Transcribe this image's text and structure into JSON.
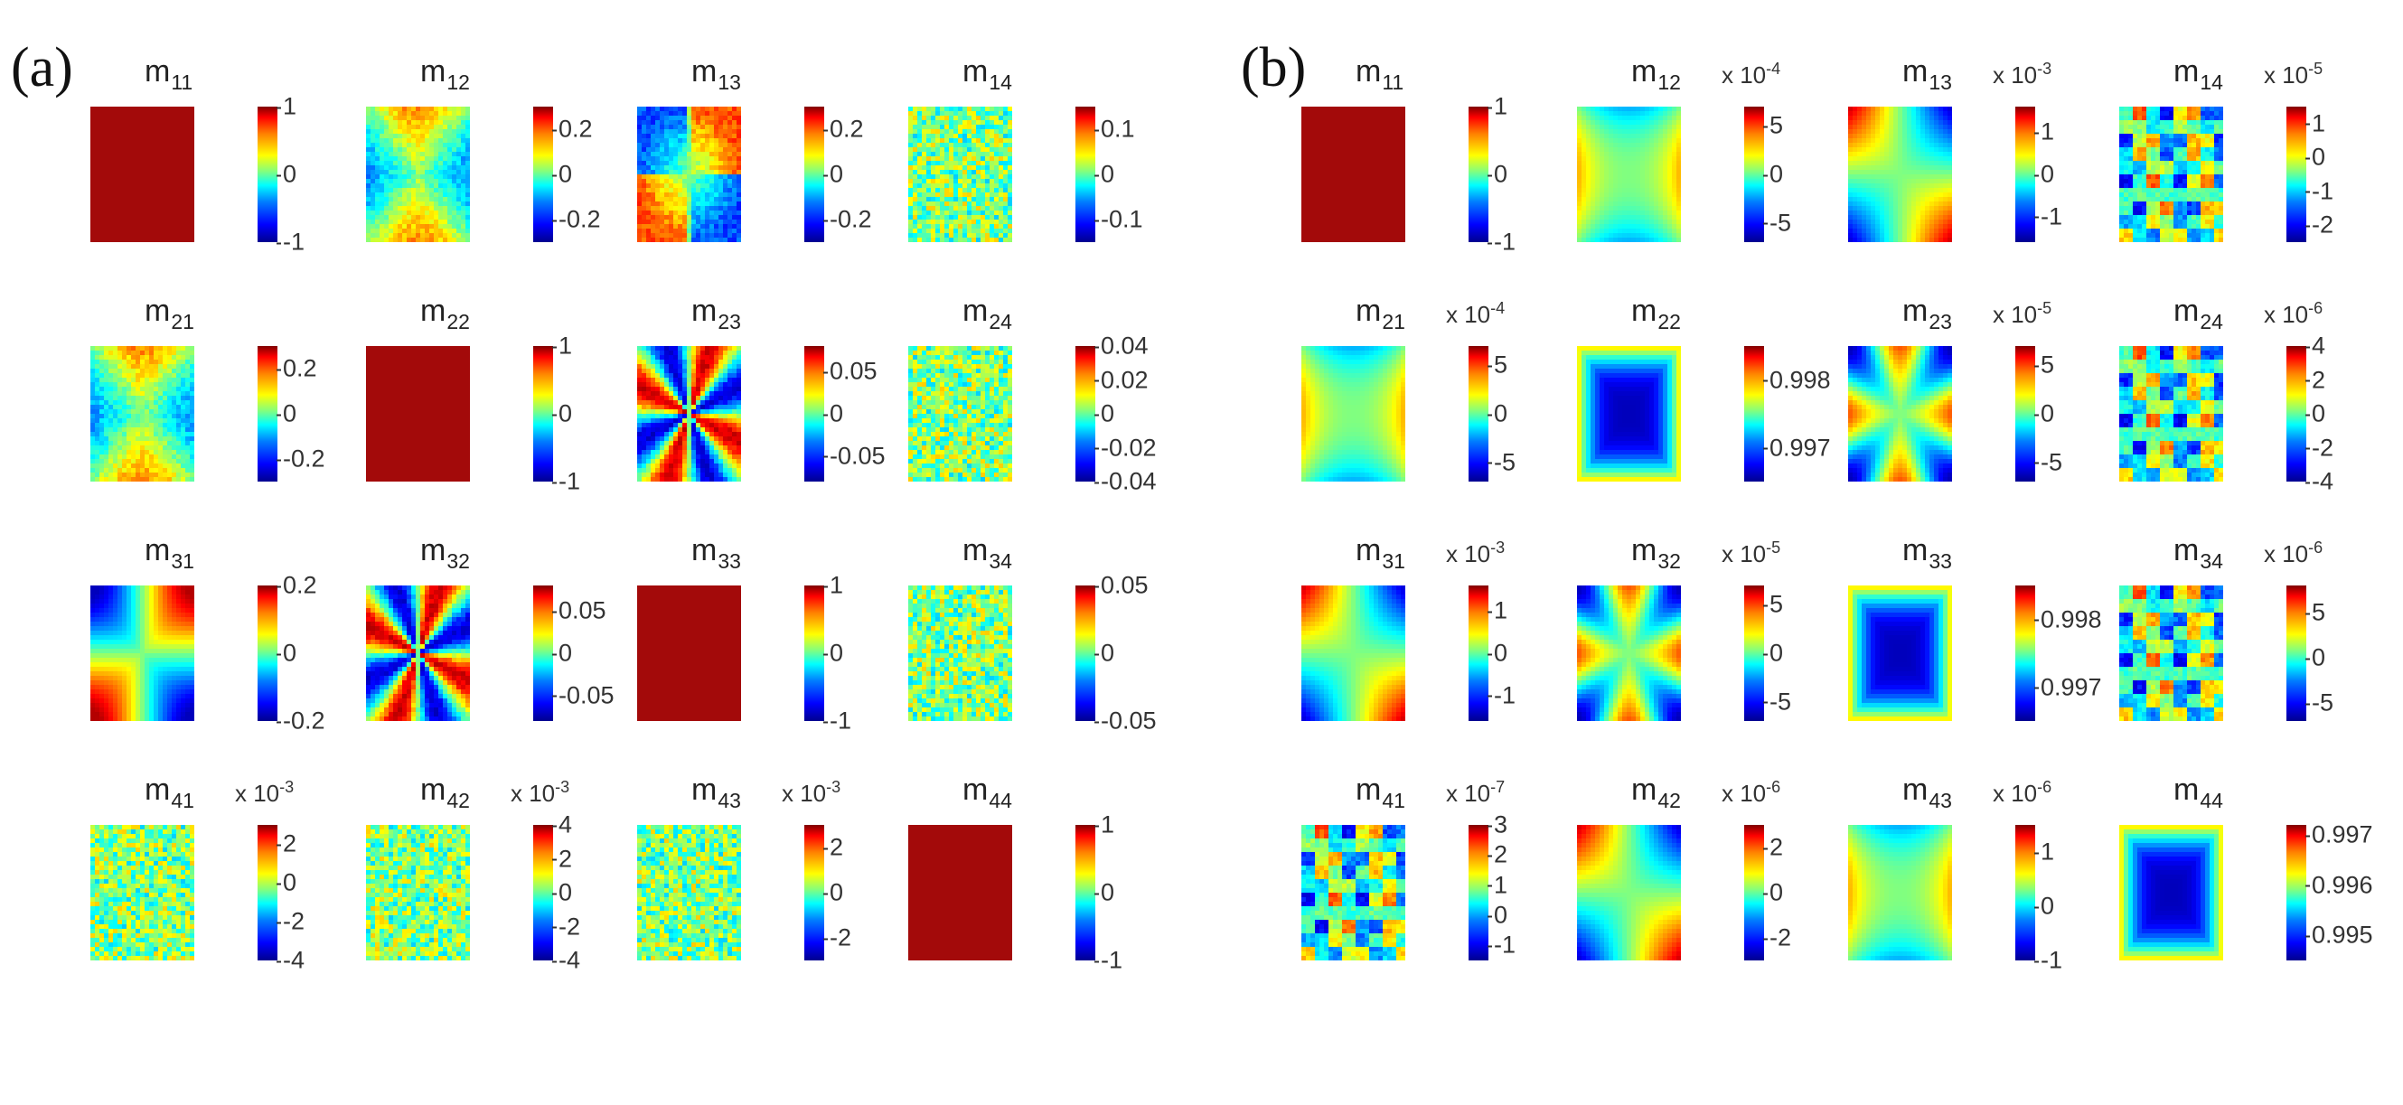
{
  "chart_data": [
    {
      "type": "heatmap",
      "panel": "(a)",
      "matrices": [
        {
          "element": "m",
          "sub": "11",
          "pattern": "uniform",
          "cbar_ticks": [
            "1",
            "0",
            "-1"
          ],
          "range": [
            -1,
            1
          ],
          "multiplier": ""
        },
        {
          "element": "m",
          "sub": "12",
          "pattern": "hourglass",
          "cbar_ticks": [
            "0.2",
            "0",
            "-0.2"
          ],
          "range": [
            -0.3,
            0.3
          ],
          "multiplier": ""
        },
        {
          "element": "m",
          "sub": "13",
          "pattern": "quadrants",
          "cbar_ticks": [
            "0.2",
            "0",
            "-0.2"
          ],
          "range": [
            -0.3,
            0.3
          ],
          "multiplier": ""
        },
        {
          "element": "m",
          "sub": "14",
          "pattern": "noise",
          "cbar_ticks": [
            "0.1",
            "0",
            "-0.1"
          ],
          "range": [
            -0.15,
            0.15
          ],
          "multiplier": ""
        },
        {
          "element": "m",
          "sub": "21",
          "pattern": "hourglass",
          "cbar_ticks": [
            "0.2",
            "0",
            "-0.2"
          ],
          "range": [
            -0.3,
            0.3
          ],
          "multiplier": ""
        },
        {
          "element": "m",
          "sub": "22",
          "pattern": "uniform",
          "cbar_ticks": [
            "1",
            "0",
            "-1"
          ],
          "range": [
            -1,
            1
          ],
          "multiplier": ""
        },
        {
          "element": "m",
          "sub": "23",
          "pattern": "radial",
          "cbar_ticks": [
            "0.05",
            "0",
            "-0.05"
          ],
          "range": [
            -0.08,
            0.08
          ],
          "multiplier": ""
        },
        {
          "element": "m",
          "sub": "24",
          "pattern": "noise",
          "cbar_ticks": [
            "0.04",
            "0.02",
            "0",
            "-0.02",
            "-0.04"
          ],
          "range": [
            -0.04,
            0.04
          ],
          "multiplier": ""
        },
        {
          "element": "m",
          "sub": "31",
          "pattern": "quadrants-strong",
          "cbar_ticks": [
            "0.2",
            "0",
            "-0.2"
          ],
          "range": [
            -0.2,
            0.2
          ],
          "multiplier": ""
        },
        {
          "element": "m",
          "sub": "32",
          "pattern": "radial",
          "cbar_ticks": [
            "0.05",
            "0",
            "-0.05"
          ],
          "range": [
            -0.08,
            0.08
          ],
          "multiplier": ""
        },
        {
          "element": "m",
          "sub": "33",
          "pattern": "uniform",
          "cbar_ticks": [
            "1",
            "0",
            "-1"
          ],
          "range": [
            -1,
            1
          ],
          "multiplier": ""
        },
        {
          "element": "m",
          "sub": "34",
          "pattern": "noise",
          "cbar_ticks": [
            "0.05",
            "0",
            "-0.05"
          ],
          "range": [
            -0.05,
            0.05
          ],
          "multiplier": ""
        },
        {
          "element": "m",
          "sub": "41",
          "pattern": "noise",
          "cbar_ticks": [
            "2",
            "0",
            "-2",
            "-4"
          ],
          "range": [
            -4,
            3
          ],
          "multiplier": "x 10",
          "exponent": "-3"
        },
        {
          "element": "m",
          "sub": "42",
          "pattern": "noise",
          "cbar_ticks": [
            "4",
            "2",
            "0",
            "-2",
            "-4"
          ],
          "range": [
            -4,
            4
          ],
          "multiplier": "x 10",
          "exponent": "-3"
        },
        {
          "element": "m",
          "sub": "43",
          "pattern": "noise",
          "cbar_ticks": [
            "2",
            "0",
            "-2"
          ],
          "range": [
            -3,
            3
          ],
          "multiplier": "x 10",
          "exponent": "-3"
        },
        {
          "element": "m",
          "sub": "44",
          "pattern": "uniform",
          "cbar_ticks": [
            "1",
            "0",
            "-1"
          ],
          "range": [
            -1,
            1
          ],
          "multiplier": ""
        }
      ]
    },
    {
      "type": "heatmap",
      "panel": "(b)",
      "matrices": [
        {
          "element": "m",
          "sub": "11",
          "pattern": "uniform",
          "cbar_ticks": [
            "1",
            "0",
            "-1"
          ],
          "range": [
            -1,
            1
          ],
          "multiplier": ""
        },
        {
          "element": "m",
          "sub": "12",
          "pattern": "smooth-hourglass",
          "cbar_ticks": [
            "5",
            "0",
            "-5"
          ],
          "range": [
            -7,
            7
          ],
          "multiplier": "x 10",
          "exponent": "-4"
        },
        {
          "element": "m",
          "sub": "13",
          "pattern": "smooth-quadrants",
          "cbar_ticks": [
            "1",
            "0",
            "-1"
          ],
          "range": [
            -1.6,
            1.6
          ],
          "multiplier": "x 10",
          "exponent": "-3"
        },
        {
          "element": "m",
          "sub": "14",
          "pattern": "blocky",
          "cbar_ticks": [
            "1",
            "0",
            "-1",
            "-2"
          ],
          "range": [
            -2.5,
            1.5
          ],
          "multiplier": "x 10",
          "exponent": "-5"
        },
        {
          "element": "m",
          "sub": "21",
          "pattern": "smooth-hourglass",
          "cbar_ticks": [
            "5",
            "0",
            "-5"
          ],
          "range": [
            -7,
            7
          ],
          "multiplier": "x 10",
          "exponent": "-4"
        },
        {
          "element": "m",
          "sub": "22",
          "pattern": "bowl",
          "cbar_ticks": [
            "0.998",
            "0.997"
          ],
          "range": [
            0.9965,
            0.9985
          ],
          "multiplier": ""
        },
        {
          "element": "m",
          "sub": "23",
          "pattern": "star",
          "cbar_ticks": [
            "5",
            "0",
            "-5"
          ],
          "range": [
            -7,
            7
          ],
          "multiplier": "x 10",
          "exponent": "-5"
        },
        {
          "element": "m",
          "sub": "24",
          "pattern": "blocky",
          "cbar_ticks": [
            "4",
            "2",
            "0",
            "-2",
            "-4"
          ],
          "range": [
            -4,
            4
          ],
          "multiplier": "x 10",
          "exponent": "-6"
        },
        {
          "element": "m",
          "sub": "31",
          "pattern": "smooth-quadrants",
          "cbar_ticks": [
            "1",
            "0",
            "-1"
          ],
          "range": [
            -1.6,
            1.6
          ],
          "multiplier": "x 10",
          "exponent": "-3"
        },
        {
          "element": "m",
          "sub": "32",
          "pattern": "star",
          "cbar_ticks": [
            "5",
            "0",
            "-5"
          ],
          "range": [
            -7,
            7
          ],
          "multiplier": "x 10",
          "exponent": "-5"
        },
        {
          "element": "m",
          "sub": "33",
          "pattern": "bowl",
          "cbar_ticks": [
            "0.998",
            "0.997"
          ],
          "range": [
            0.9965,
            0.9985
          ],
          "multiplier": ""
        },
        {
          "element": "m",
          "sub": "34",
          "pattern": "blocky",
          "cbar_ticks": [
            "5",
            "0",
            "-5"
          ],
          "range": [
            -7,
            8
          ],
          "multiplier": "x 10",
          "exponent": "-6"
        },
        {
          "element": "m",
          "sub": "41",
          "pattern": "blocky",
          "cbar_ticks": [
            "3",
            "2",
            "1",
            "0",
            "-1"
          ],
          "range": [
            -1.5,
            3
          ],
          "multiplier": "x 10",
          "exponent": "-7"
        },
        {
          "element": "m",
          "sub": "42",
          "pattern": "smooth-quadrants",
          "cbar_ticks": [
            "2",
            "0",
            "-2"
          ],
          "range": [
            -3,
            3
          ],
          "multiplier": "x 10",
          "exponent": "-6"
        },
        {
          "element": "m",
          "sub": "43",
          "pattern": "smooth-hourglass",
          "cbar_ticks": [
            "1",
            "0",
            "-1"
          ],
          "range": [
            -1,
            1.5
          ],
          "multiplier": "x 10",
          "exponent": "-6"
        },
        {
          "element": "m",
          "sub": "44",
          "pattern": "bowl",
          "cbar_ticks": [
            "0.997",
            "0.996",
            "0.995"
          ],
          "range": [
            0.9945,
            0.9972
          ],
          "multiplier": ""
        }
      ]
    }
  ]
}
